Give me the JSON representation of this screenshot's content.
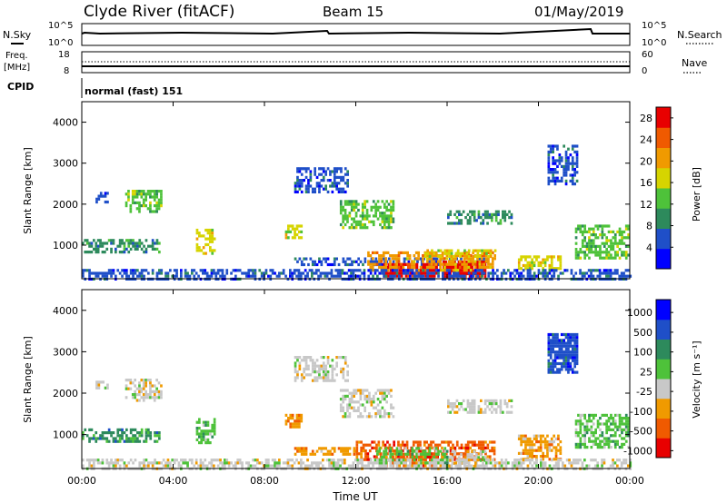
{
  "header": {
    "station": "Clyde River (fitACF)",
    "beam": "Beam 15",
    "date": "01/May/2019"
  },
  "top_panels": {
    "nsky_label": "N.Sky",
    "nsearch_label": "N.Search",
    "nsky_ticks": [
      "10^5",
      "10^0"
    ],
    "nsearch_ticks": [
      "10^5",
      "10^0"
    ],
    "freq_label_1": "Freq.",
    "freq_label_2": "[MHz]",
    "freq_ticks": [
      "18",
      "8"
    ],
    "nave_label": "Nave",
    "nave_ticks": [
      "60",
      "0"
    ],
    "cpid_label": "CPID",
    "cpid_value": "normal (fast) 151"
  },
  "colors": {
    "power": [
      "#0000ff",
      "#1f4fc8",
      "#2d8a5c",
      "#4ec23a",
      "#d6d400",
      "#f09a00",
      "#f05a00",
      "#e80000"
    ],
    "velocity": [
      "#e80000",
      "#f05a00",
      "#f09a00",
      "#c8c8c8",
      "#4ec23a",
      "#2d8a5c",
      "#1f4fc8",
      "#0000ff"
    ]
  },
  "chart_data": [
    {
      "type": "heatmap",
      "name": "power",
      "ylabel": "Slant Range [km]",
      "x_ticks": [
        "00:00",
        "04:00",
        "08:00",
        "12:00",
        "16:00",
        "20:00",
        "00:00"
      ],
      "y_ticks": [
        1000,
        2000,
        3000,
        4000
      ],
      "xlim_hours": [
        0,
        24
      ],
      "ylim_km": [
        180,
        4500
      ],
      "colorbar_label": "Power [dB]",
      "colorbar_ticks": [
        4,
        8,
        12,
        16,
        20,
        24,
        28
      ],
      "colorbar_range": [
        0,
        30
      ],
      "regions": [
        {
          "t0": 0.0,
          "t1": 3.4,
          "r0": 850,
          "r1": 1150,
          "level": 2
        },
        {
          "t0": 1.9,
          "t1": 3.5,
          "r0": 1850,
          "r1": 2350,
          "level": 3
        },
        {
          "t0": 0.6,
          "t1": 1.1,
          "r0": 2050,
          "r1": 2300,
          "level": 1
        },
        {
          "t0": 5.0,
          "t1": 5.8,
          "r0": 800,
          "r1": 1400,
          "level": 4
        },
        {
          "t0": 8.9,
          "t1": 9.6,
          "r0": 1150,
          "r1": 1500,
          "level": 4
        },
        {
          "t0": 9.3,
          "t1": 11.6,
          "r0": 2300,
          "r1": 2900,
          "level": 1
        },
        {
          "t0": 11.3,
          "t1": 13.6,
          "r0": 1400,
          "r1": 2100,
          "level": 3
        },
        {
          "t0": 9.3,
          "t1": 17.8,
          "r0": 500,
          "r1": 700,
          "level": 1
        },
        {
          "t0": 13.2,
          "t1": 15.5,
          "r0": 250,
          "r1": 560,
          "level": 7
        },
        {
          "t0": 15.8,
          "t1": 17.7,
          "r0": 250,
          "r1": 620,
          "level": 7
        },
        {
          "t0": 12.5,
          "t1": 18.1,
          "r0": 380,
          "r1": 850,
          "level": 5
        },
        {
          "t0": 15.0,
          "t1": 18.1,
          "r0": 700,
          "r1": 900,
          "level": 4
        },
        {
          "t0": 16.0,
          "t1": 18.8,
          "r0": 1500,
          "r1": 1850,
          "level": 2
        },
        {
          "t0": 19.1,
          "t1": 21.0,
          "r0": 400,
          "r1": 750,
          "level": 4
        },
        {
          "t0": 20.4,
          "t1": 21.7,
          "r0": 2500,
          "r1": 3450,
          "level": 1
        },
        {
          "t0": 21.6,
          "t1": 23.9,
          "r0": 700,
          "r1": 1500,
          "level": 3
        },
        {
          "t0": 0.0,
          "t1": 24.0,
          "r0": 180,
          "r1": 420,
          "level": 1
        }
      ]
    },
    {
      "type": "heatmap",
      "name": "velocity",
      "ylabel": "Slant Range [km]",
      "xlabel": "Time UT",
      "x_ticks": [
        "00:00",
        "04:00",
        "08:00",
        "12:00",
        "16:00",
        "20:00",
        "00:00"
      ],
      "y_ticks": [
        1000,
        2000,
        3000,
        4000
      ],
      "xlim_hours": [
        0,
        24
      ],
      "ylim_km": [
        180,
        4500
      ],
      "colorbar_label": "Velocity [m s⁻¹]",
      "colorbar_ticks": [
        "1000",
        "500",
        "100",
        "25",
        "-25",
        "-100",
        "-500",
        "-1000"
      ],
      "regions": [
        {
          "t0": 0.0,
          "t1": 3.4,
          "r0": 850,
          "r1": 1150,
          "level": 5
        },
        {
          "t0": 1.9,
          "t1": 3.5,
          "r0": 1850,
          "r1": 2350,
          "level": 3
        },
        {
          "t0": 0.6,
          "t1": 1.1,
          "r0": 2050,
          "r1": 2300,
          "level": 3
        },
        {
          "t0": 5.0,
          "t1": 5.8,
          "r0": 800,
          "r1": 1400,
          "level": 4
        },
        {
          "t0": 8.9,
          "t1": 9.6,
          "r0": 1150,
          "r1": 1500,
          "level": 2
        },
        {
          "t0": 9.3,
          "t1": 11.6,
          "r0": 2300,
          "r1": 2900,
          "level": 3
        },
        {
          "t0": 11.3,
          "t1": 13.6,
          "r0": 1400,
          "r1": 2100,
          "level": 3
        },
        {
          "t0": 9.3,
          "t1": 12.0,
          "r0": 500,
          "r1": 700,
          "level": 2
        },
        {
          "t0": 12.0,
          "t1": 18.1,
          "r0": 380,
          "r1": 850,
          "level": 1
        },
        {
          "t0": 13.2,
          "t1": 15.5,
          "r0": 250,
          "r1": 560,
          "level": 1
        },
        {
          "t0": 15.8,
          "t1": 17.7,
          "r0": 250,
          "r1": 620,
          "level": 3
        },
        {
          "t0": 12.8,
          "t1": 16.0,
          "r0": 300,
          "r1": 700,
          "level": 4
        },
        {
          "t0": 16.0,
          "t1": 18.8,
          "r0": 1500,
          "r1": 1850,
          "level": 3
        },
        {
          "t0": 19.1,
          "t1": 21.0,
          "r0": 400,
          "r1": 1000,
          "level": 2
        },
        {
          "t0": 20.4,
          "t1": 21.7,
          "r0": 2500,
          "r1": 3450,
          "level": 6
        },
        {
          "t0": 21.6,
          "t1": 23.9,
          "r0": 700,
          "r1": 1500,
          "level": 4
        },
        {
          "t0": 0.0,
          "t1": 24.0,
          "r0": 180,
          "r1": 420,
          "level": 3
        }
      ]
    }
  ]
}
